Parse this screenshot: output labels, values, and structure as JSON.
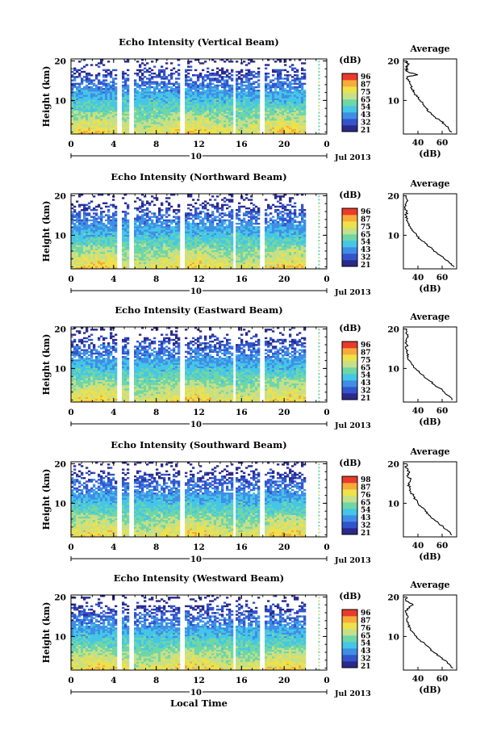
{
  "chart_data": [
    {
      "type": "heatmap",
      "title": "Echo Intensity (Vertical Beam)",
      "ylabel": "Height (km)",
      "yticks": [
        10,
        20
      ],
      "ylim": [
        1.5,
        20.5
      ],
      "xticks": [
        "0",
        "4",
        "8",
        "12",
        "16",
        "20",
        "0"
      ],
      "xlim": [
        0,
        24
      ],
      "date_marker": "10",
      "date_label": "Jul 2013",
      "gaps_hours": [
        [
          4.1,
          4.6
        ],
        [
          5.3,
          5.8
        ],
        [
          10.1,
          10.6
        ],
        [
          15.0,
          15.4
        ],
        [
          17.7,
          18.1
        ],
        [
          22.0,
          22.9
        ]
      ],
      "colorbar": {
        "unit": "(dB)",
        "labels": [
          "96",
          "87",
          "75",
          "65",
          "54",
          "43",
          "32",
          "21"
        ]
      },
      "average_profile": {
        "title": "Average",
        "xlabel": "(dB)",
        "xticks": [
          40,
          60
        ],
        "xlim": [
          28,
          72
        ],
        "yticks": [
          10,
          20
        ],
        "ylim": [
          1.5,
          20.5
        ],
        "height_km": [
          2,
          3,
          4,
          5,
          6,
          7,
          8,
          9,
          10,
          11,
          12,
          13,
          14,
          15,
          16,
          16.5,
          17,
          17.5,
          18,
          18.5,
          19,
          19.5,
          20
        ],
        "db": [
          68,
          65,
          62,
          58,
          53,
          50,
          47,
          44,
          42,
          39,
          37,
          35,
          34,
          32,
          31,
          40,
          33,
          30,
          31,
          30,
          32,
          31,
          30
        ]
      }
    },
    {
      "type": "heatmap",
      "title": "Echo Intensity (Northward Beam)",
      "ylabel": "Height (km)",
      "yticks": [
        10,
        20
      ],
      "ylim": [
        1.5,
        20.5
      ],
      "xticks": [
        "0",
        "4",
        "8",
        "12",
        "16",
        "20",
        "0"
      ],
      "xlim": [
        0,
        24
      ],
      "date_marker": "10",
      "date_label": "Jul 2013",
      "gaps_hours": [
        [
          4.1,
          4.6
        ],
        [
          5.3,
          5.8
        ],
        [
          10.1,
          10.6
        ],
        [
          15.0,
          15.4
        ],
        [
          17.7,
          18.1
        ],
        [
          22.0,
          22.9
        ]
      ],
      "colorbar": {
        "unit": "(dB)",
        "labels": [
          "96",
          "87",
          "75",
          "65",
          "54",
          "43",
          "32",
          "21"
        ]
      },
      "average_profile": {
        "title": "Average",
        "xlabel": "(dB)",
        "xticks": [
          40,
          60
        ],
        "xlim": [
          28,
          72
        ],
        "yticks": [
          10,
          20
        ],
        "ylim": [
          1.5,
          20.5
        ],
        "height_km": [
          2,
          3,
          4,
          5,
          6,
          7,
          8,
          9,
          10,
          11,
          12,
          13,
          14,
          15,
          16,
          17,
          18,
          19,
          20
        ],
        "db": [
          70,
          66,
          62,
          58,
          53,
          50,
          46,
          42,
          39,
          36,
          34,
          32,
          31,
          30,
          31,
          29,
          30,
          31,
          30
        ]
      }
    },
    {
      "type": "heatmap",
      "title": "Echo Intensity (Eastward Beam)",
      "ylabel": "Height (km)",
      "yticks": [
        10,
        20
      ],
      "ylim": [
        1.5,
        20.5
      ],
      "xticks": [
        "0",
        "4",
        "8",
        "12",
        "16",
        "20",
        "0"
      ],
      "xlim": [
        0,
        24
      ],
      "date_marker": "10",
      "date_label": "Jul 2013",
      "gaps_hours": [
        [
          4.1,
          4.6
        ],
        [
          5.3,
          5.8
        ],
        [
          10.1,
          10.6
        ],
        [
          15.0,
          15.4
        ],
        [
          17.7,
          18.1
        ],
        [
          22.0,
          22.9
        ]
      ],
      "colorbar": {
        "unit": "(dB)",
        "labels": [
          "96",
          "87",
          "75",
          "65",
          "54",
          "43",
          "32",
          "21"
        ]
      },
      "average_profile": {
        "title": "Average",
        "xlabel": "(dB)",
        "xticks": [
          40,
          60
        ],
        "xlim": [
          28,
          72
        ],
        "yticks": [
          10,
          20
        ],
        "ylim": [
          1.5,
          20.5
        ],
        "height_km": [
          2,
          3,
          4,
          5,
          6,
          7,
          8,
          9,
          10,
          11,
          12,
          13,
          14,
          15,
          16,
          17,
          18,
          19,
          20
        ],
        "db": [
          68,
          66,
          62,
          58,
          53,
          49,
          45,
          41,
          38,
          35,
          33,
          32,
          31,
          30,
          31,
          30,
          32,
          30,
          31
        ]
      }
    },
    {
      "type": "heatmap",
      "title": "Echo Intensity (Southward Beam)",
      "ylabel": "Height (km)",
      "yticks": [
        10,
        20
      ],
      "ylim": [
        1.5,
        20.5
      ],
      "xticks": [
        "0",
        "4",
        "8",
        "12",
        "16",
        "20",
        "0"
      ],
      "xlim": [
        0,
        24
      ],
      "date_marker": "10",
      "date_label": "Jul 2013",
      "gaps_hours": [
        [
          4.1,
          4.6
        ],
        [
          5.3,
          5.8
        ],
        [
          10.1,
          10.6
        ],
        [
          15.0,
          15.4
        ],
        [
          17.7,
          18.1
        ],
        [
          22.0,
          22.9
        ]
      ],
      "colorbar": {
        "unit": "(dB)",
        "labels": [
          "98",
          "87",
          "76",
          "65",
          "54",
          "43",
          "32",
          "21"
        ]
      },
      "average_profile": {
        "title": "Average",
        "xlabel": "(dB)",
        "xticks": [
          40,
          60
        ],
        "xlim": [
          28,
          72
        ],
        "yticks": [
          10,
          20
        ],
        "ylim": [
          1.5,
          20.5
        ],
        "height_km": [
          2,
          3,
          4,
          5,
          6,
          7,
          8,
          9,
          10,
          11,
          12,
          13,
          14,
          15,
          16,
          17,
          18,
          19,
          20
        ],
        "db": [
          68,
          65,
          61,
          57,
          53,
          49,
          46,
          43,
          40,
          38,
          36,
          34,
          33,
          32,
          34,
          31,
          33,
          30,
          31
        ]
      }
    },
    {
      "type": "heatmap",
      "title": "Echo Intensity (Westward Beam)",
      "ylabel": "Height (km)",
      "yticks": [
        10,
        20
      ],
      "ylim": [
        1.5,
        20.5
      ],
      "xticks": [
        "0",
        "4",
        "8",
        "12",
        "16",
        "20",
        "0"
      ],
      "xlim": [
        0,
        24
      ],
      "xlabel": "Local Time",
      "date_marker": "10",
      "date_label": "Jul 2013",
      "gaps_hours": [
        [
          4.1,
          4.6
        ],
        [
          5.3,
          5.8
        ],
        [
          10.1,
          10.6
        ],
        [
          15.0,
          15.4
        ],
        [
          17.7,
          18.1
        ],
        [
          22.0,
          22.9
        ]
      ],
      "colorbar": {
        "unit": "(dB)",
        "labels": [
          "96",
          "87",
          "76",
          "65",
          "54",
          "43",
          "32",
          "21"
        ]
      },
      "average_profile": {
        "title": "Average",
        "xlabel": "(dB)",
        "xticks": [
          40,
          60
        ],
        "xlim": [
          28,
          72
        ],
        "yticks": [
          10,
          20
        ],
        "ylim": [
          1.5,
          20.5
        ],
        "height_km": [
          2,
          3,
          4,
          5,
          6,
          7,
          8,
          9,
          10,
          11,
          12,
          13,
          14,
          15,
          16,
          17,
          18,
          19,
          20
        ],
        "db": [
          69,
          66,
          62,
          58,
          53,
          50,
          46,
          42,
          39,
          36,
          34,
          32,
          31,
          32,
          30,
          31,
          36,
          30,
          31
        ]
      }
    }
  ],
  "colors": {
    "colormap": [
      "#2a2a8c",
      "#3355cc",
      "#3f8ee6",
      "#45c6e6",
      "#6fd6a6",
      "#c4e08a",
      "#eee14a",
      "#f6ab3a",
      "#ea3a2c"
    ],
    "axis": "#000000",
    "background": "#ffffff"
  }
}
